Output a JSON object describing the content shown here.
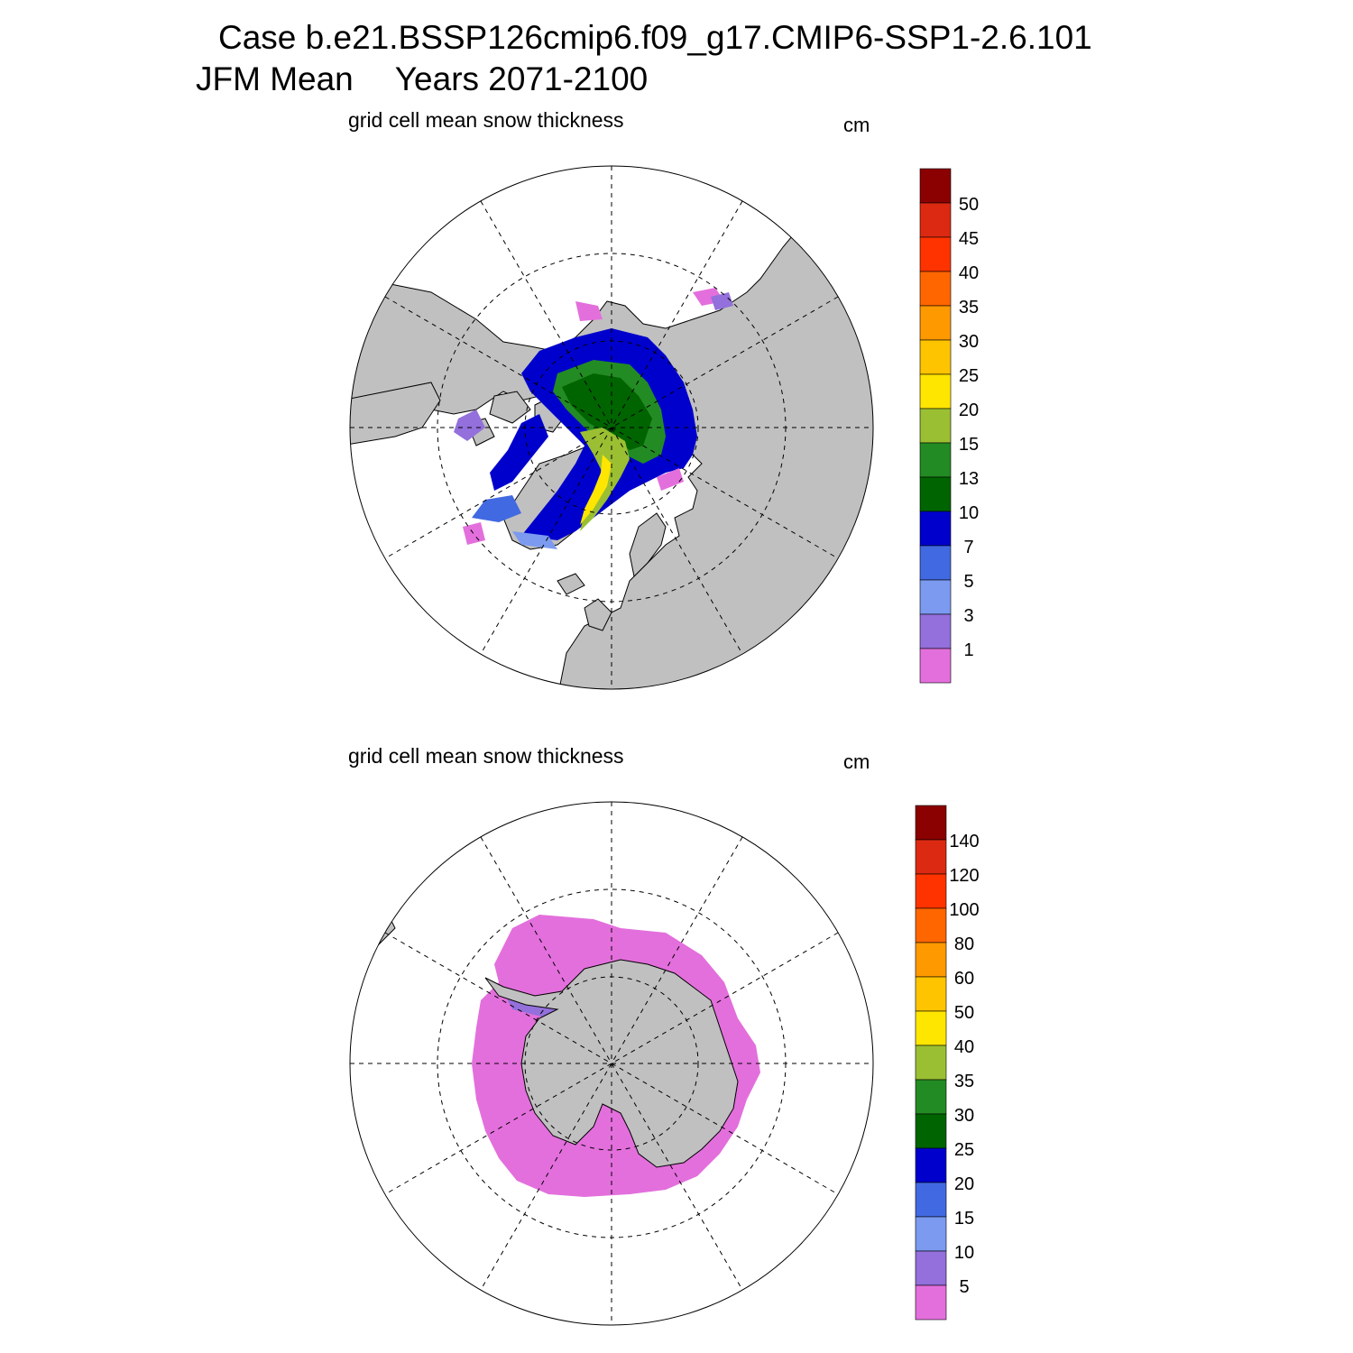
{
  "title": {
    "line1": "Case b.e21.BSSP126cmip6.f09_g17.CMIP6-SSP1-2.6.101",
    "line2a": "JFM Mean",
    "line2b": "Years 2071-2100"
  },
  "panels": [
    {
      "label": "grid cell mean snow thickness",
      "units": "cm",
      "hemisphere": "north",
      "colorbar": {
        "labels": [
          "50",
          "45",
          "40",
          "35",
          "30",
          "25",
          "20",
          "15",
          "13",
          "10",
          "7",
          "5",
          "3",
          "1"
        ],
        "colors": [
          "#8b0000",
          "#dc2912",
          "#ff3300",
          "#ff6600",
          "#ff9900",
          "#ffc400",
          "#ffe600",
          "#9bbf32",
          "#238b23",
          "#006400",
          "#0000cd",
          "#4169e1",
          "#7b9af0",
          "#9370db",
          "#e36fdc"
        ]
      }
    },
    {
      "label": "grid cell mean snow thickness",
      "units": "cm",
      "hemisphere": "south",
      "colorbar": {
        "labels": [
          "140",
          "120",
          "100",
          "80",
          "60",
          "50",
          "40",
          "35",
          "30",
          "25",
          "20",
          "15",
          "10",
          "5"
        ],
        "colors": [
          "#8b0000",
          "#dc2912",
          "#ff3300",
          "#ff6600",
          "#ff9900",
          "#ffc400",
          "#ffe600",
          "#9bbf32",
          "#238b23",
          "#006400",
          "#0000cd",
          "#4169e1",
          "#7b9af0",
          "#9370db",
          "#e36fdc"
        ]
      }
    }
  ],
  "colors": {
    "land": "#c0c0c0",
    "ocean": "#ffffff",
    "grid": "#000000"
  }
}
